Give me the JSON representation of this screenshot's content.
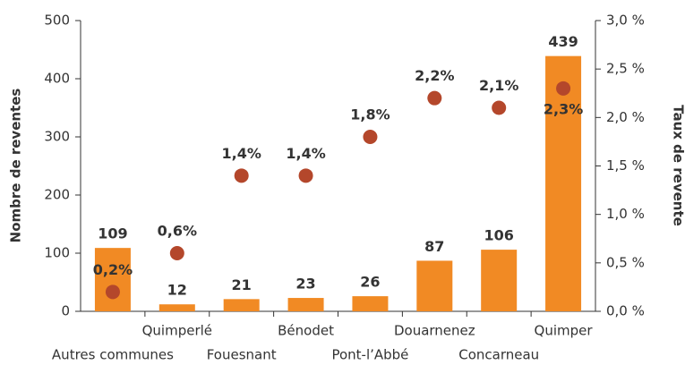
{
  "chart_data": {
    "type": "bar",
    "y_label": "Nombre de reventes",
    "y2_label": "Taux de revente",
    "categories": [
      "Autres communes",
      "Quimperlé",
      "Fouesnant",
      "Bénodet",
      "Pont-l’Abbé",
      "Douarnenez",
      "Concarneau",
      "Quimper"
    ],
    "series": [
      {
        "type": "bar",
        "color": "#f18a24",
        "values": [
          109,
          12,
          21,
          23,
          26,
          87,
          106,
          439
        ]
      },
      {
        "type": "scatter",
        "axis": "y2",
        "color": "#b4472b",
        "values": [
          0.2,
          0.6,
          1.4,
          1.4,
          1.8,
          2.2,
          2.1,
          2.3
        ],
        "value_labels": [
          "0,2%",
          "0,6%",
          "1,4%",
          "1,4%",
          "1,8%",
          "2,2%",
          "2,1%",
          "2,3%"
        ]
      }
    ],
    "ylim": [
      0,
      500
    ],
    "yticks": [
      0,
      100,
      200,
      300,
      400,
      500
    ],
    "y2lim": [
      0,
      3
    ],
    "y2ticks": [
      {
        "value": 0,
        "label": "0,0 %"
      },
      {
        "value": 0.5,
        "label": "0,5 %"
      },
      {
        "value": 1,
        "label": "1,0 %"
      },
      {
        "value": 1.5,
        "label": "1,5 %"
      },
      {
        "value": 2,
        "label": "2,0 %"
      },
      {
        "value": 2.5,
        "label": "2,5 %"
      },
      {
        "value": 3,
        "label": "3,0 %"
      }
    ]
  }
}
